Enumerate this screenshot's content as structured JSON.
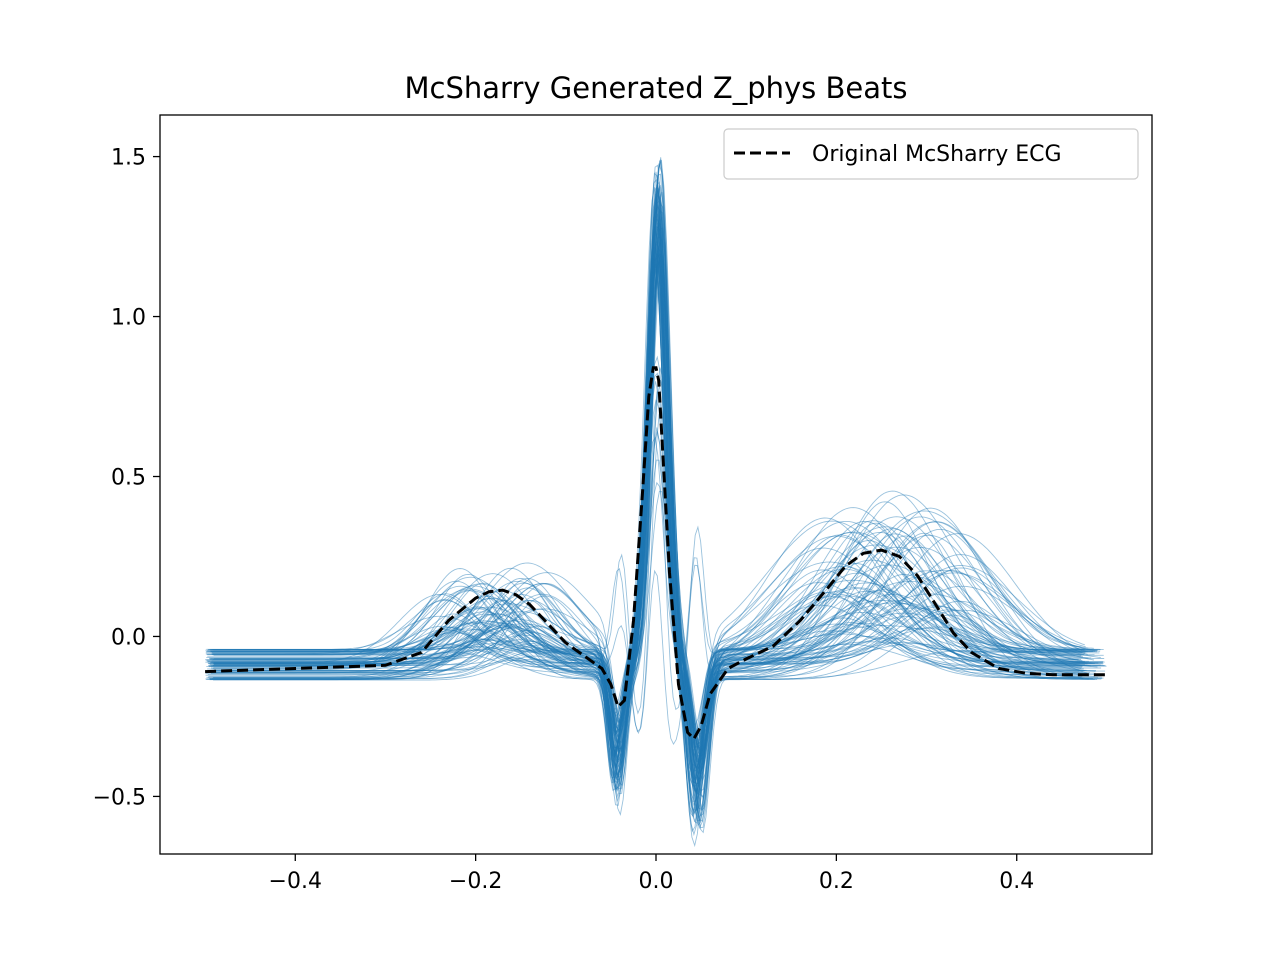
{
  "chart_data": {
    "type": "line",
    "title": "McSharry Generated Z_phys Beats",
    "xlabel": "",
    "ylabel": "",
    "xlim": [
      -0.55,
      0.55
    ],
    "ylim": [
      -0.68,
      1.63
    ],
    "x_ticks": [
      -0.4,
      -0.2,
      0.0,
      0.2,
      0.4
    ],
    "x_tick_labels": [
      "−0.4",
      "−0.2",
      "0.0",
      "0.2",
      "0.4"
    ],
    "y_ticks": [
      -0.5,
      0.0,
      0.5,
      1.0,
      1.5
    ],
    "y_tick_labels": [
      "−0.5",
      "0.0",
      "0.5",
      "1.0",
      "1.5"
    ],
    "grid": false,
    "legend": {
      "position": "top-right",
      "entries": [
        "Original McSharry ECG"
      ]
    },
    "colors": {
      "beats": "#1f77b4",
      "original": "#000000",
      "frame": "#000000"
    },
    "generated_beats": {
      "count": 100,
      "baseline_range": [
        -0.14,
        -0.04
      ],
      "p_wave_center_range": [
        -0.24,
        -0.12
      ],
      "p_wave_height_range": [
        0.05,
        0.28
      ],
      "r_peak_range": [
        0.45,
        1.52
      ],
      "q_dip_range": [
        -0.45,
        -0.18
      ],
      "s_dip_range": [
        -0.57,
        -0.22
      ],
      "t_wave_center_range": [
        0.18,
        0.34
      ],
      "t_wave_height_range": [
        0.08,
        0.5
      ]
    },
    "series": [
      {
        "name": "Original McSharry ECG",
        "style": "dashed",
        "x": [
          -0.5,
          -0.45,
          -0.4,
          -0.35,
          -0.3,
          -0.26,
          -0.23,
          -0.2,
          -0.185,
          -0.17,
          -0.155,
          -0.14,
          -0.12,
          -0.1,
          -0.08,
          -0.06,
          -0.05,
          -0.042,
          -0.035,
          -0.025,
          -0.015,
          -0.008,
          -0.003,
          0.0,
          0.003,
          0.008,
          0.015,
          0.025,
          0.035,
          0.042,
          0.05,
          0.06,
          0.08,
          0.1,
          0.13,
          0.16,
          0.19,
          0.21,
          0.23,
          0.25,
          0.27,
          0.29,
          0.31,
          0.33,
          0.35,
          0.38,
          0.41,
          0.44,
          0.47,
          0.5
        ],
        "y": [
          -0.11,
          -0.105,
          -0.1,
          -0.095,
          -0.09,
          -0.05,
          0.05,
          0.12,
          0.14,
          0.145,
          0.13,
          0.1,
          0.04,
          -0.02,
          -0.06,
          -0.1,
          -0.15,
          -0.22,
          -0.2,
          0.05,
          0.45,
          0.75,
          0.84,
          0.84,
          0.8,
          0.55,
          0.2,
          -0.15,
          -0.3,
          -0.32,
          -0.28,
          -0.18,
          -0.1,
          -0.07,
          -0.03,
          0.05,
          0.15,
          0.22,
          0.26,
          0.27,
          0.25,
          0.19,
          0.1,
          0.01,
          -0.05,
          -0.1,
          -0.115,
          -0.12,
          -0.12,
          -0.12
        ]
      }
    ]
  }
}
